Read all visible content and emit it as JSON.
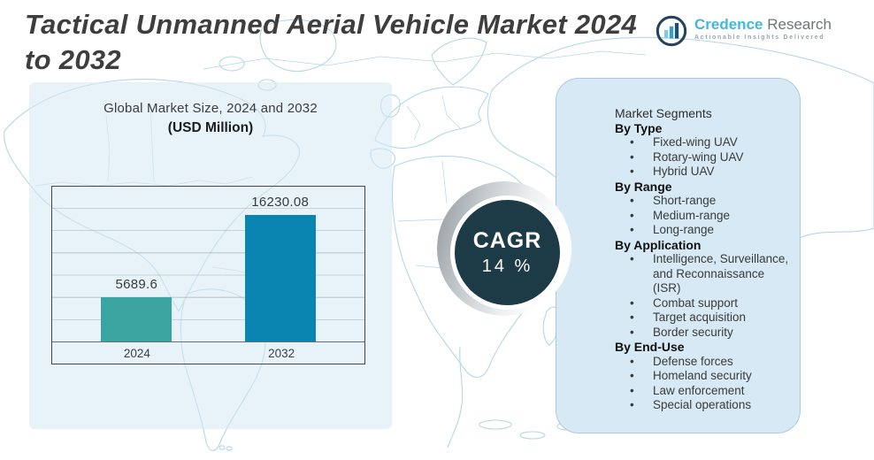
{
  "header": {
    "title_line1": "Tactical Unmanned Aerial Vehicle Market 2024",
    "title_line2": "to 2032"
  },
  "logo": {
    "brand_primary": "Credence",
    "brand_secondary": "Research",
    "tagline": "Actionable Insights Delivered"
  },
  "chart_data": {
    "type": "bar",
    "title": "Global Market Size, 2024 and 2032",
    "subtitle": "(USD Million)",
    "categories": [
      "2024",
      "2032"
    ],
    "values": [
      5689.6,
      16230.08
    ],
    "labels": [
      "5689.6",
      "16230.08"
    ],
    "ylabel": "USD Million",
    "ylim": [
      0,
      20000
    ],
    "grid": true,
    "legend": "none",
    "bar_colors": [
      "#3aa5a0",
      "#0a84b0"
    ]
  },
  "cagr": {
    "label": "CAGR",
    "value": "14 %"
  },
  "segments": {
    "title": "Market Segments",
    "groups": [
      {
        "heading": "By Type",
        "items": [
          "Fixed-wing UAV",
          "Rotary-wing UAV",
          "Hybrid UAV"
        ]
      },
      {
        "heading": "By Range",
        "items": [
          "Short-range",
          "Medium-range",
          "Long-range"
        ]
      },
      {
        "heading": "By Application",
        "items": [
          "Intelligence, Surveillance, and Reconnaissance (ISR)",
          "Combat support",
          "Target acquisition",
          "Border security"
        ]
      },
      {
        "heading": "By End-Use",
        "items": [
          "Defense forces",
          "Homeland security",
          "Law enforcement",
          "Special operations"
        ]
      }
    ]
  },
  "colors": {
    "bar_2024": "#3aa5a0",
    "bar_2032": "#0a84b0",
    "cagr_circle": "#1d3a47",
    "segments_panel_bg": "#d7e9f4",
    "segments_panel_border": "#a9cbe0",
    "chart_panel_bg": "#d6e8f4",
    "map_stroke": "#b5d7e6",
    "brand_cyan": "#45b8d9",
    "title_text": "#3e3e3e"
  }
}
